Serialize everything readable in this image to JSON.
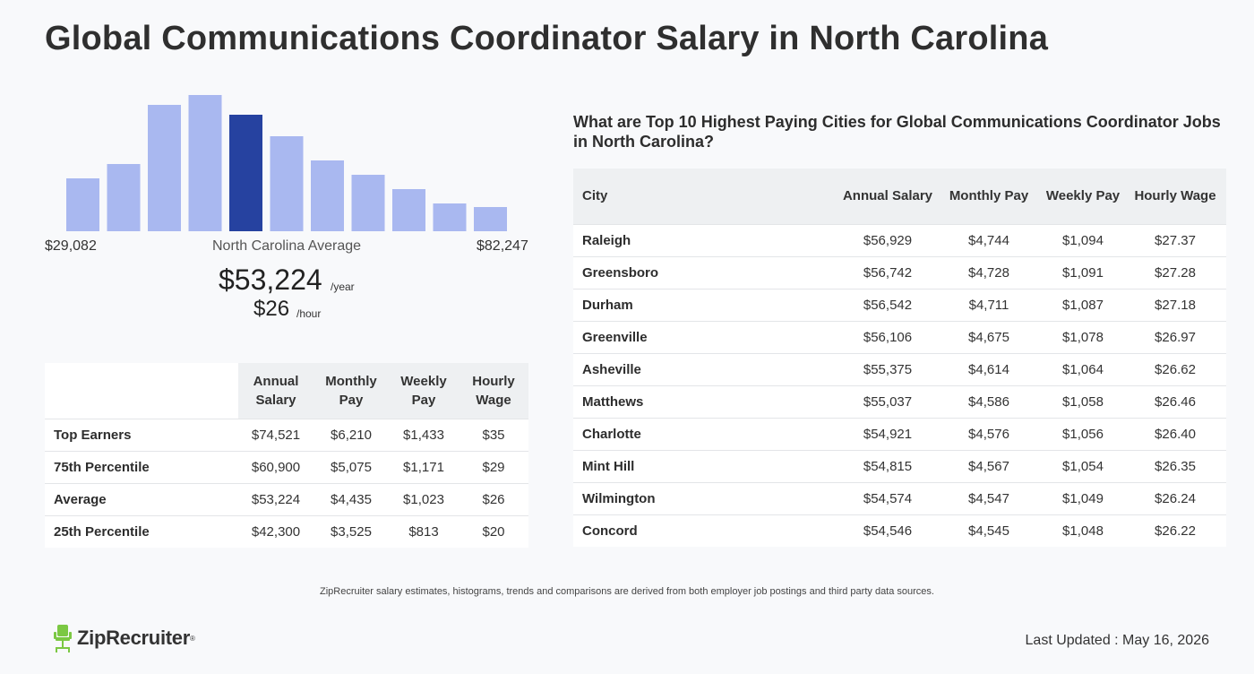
{
  "page": {
    "title": "Global Communications Coordinator Salary in North Carolina"
  },
  "histogram": {
    "range_min": "$29,082",
    "range_max": "$82,247",
    "average_label": "North Carolina Average",
    "annual_salary": "$53,224",
    "annual_unit": "/year",
    "hourly_wage": "$26",
    "hourly_unit": "/hour",
    "bar_color": "#a9b8f0",
    "highlight_color": "#2642a0"
  },
  "chart_data": {
    "type": "bar",
    "relative_heights": [
      59,
      75,
      141,
      152,
      130,
      106,
      79,
      63,
      47,
      31,
      27
    ],
    "highlight_index": 4,
    "x_range": [
      "$29,082",
      "$82,247"
    ]
  },
  "percentile_table": {
    "headers": [
      "",
      "Annual Salary",
      "Monthly Pay",
      "Weekly Pay",
      "Hourly Wage"
    ],
    "rows": [
      [
        "Top Earners",
        "$74,521",
        "$6,210",
        "$1,433",
        "$35"
      ],
      [
        "75th Percentile",
        "$60,900",
        "$5,075",
        "$1,171",
        "$29"
      ],
      [
        "Average",
        "$53,224",
        "$4,435",
        "$1,023",
        "$26"
      ],
      [
        "25th Percentile",
        "$42,300",
        "$3,525",
        "$813",
        "$20"
      ]
    ]
  },
  "cities": {
    "title": "What are Top 10 Highest Paying Cities for Global Communications Coordinator Jobs in North Carolina?",
    "headers": [
      "City",
      "Annual Salary",
      "Monthly Pay",
      "Weekly Pay",
      "Hourly Wage"
    ],
    "rows": [
      [
        "Raleigh",
        "$56,929",
        "$4,744",
        "$1,094",
        "$27.37"
      ],
      [
        "Greensboro",
        "$56,742",
        "$4,728",
        "$1,091",
        "$27.28"
      ],
      [
        "Durham",
        "$56,542",
        "$4,711",
        "$1,087",
        "$27.18"
      ],
      [
        "Greenville",
        "$56,106",
        "$4,675",
        "$1,078",
        "$26.97"
      ],
      [
        "Asheville",
        "$55,375",
        "$4,614",
        "$1,064",
        "$26.62"
      ],
      [
        "Matthews",
        "$55,037",
        "$4,586",
        "$1,058",
        "$26.46"
      ],
      [
        "Charlotte",
        "$54,921",
        "$4,576",
        "$1,056",
        "$26.40"
      ],
      [
        "Mint Hill",
        "$54,815",
        "$4,567",
        "$1,054",
        "$26.35"
      ],
      [
        "Wilmington",
        "$54,574",
        "$4,547",
        "$1,049",
        "$26.24"
      ],
      [
        "Concord",
        "$54,546",
        "$4,545",
        "$1,048",
        "$26.22"
      ]
    ]
  },
  "footer": {
    "disclaimer": "ZipRecruiter salary estimates, histograms, trends and comparisons are derived from both employer job postings and third party data sources.",
    "logo_text": "ZipRecruiter",
    "logo_tm": "®",
    "last_updated": "Last Updated : May 16, 2026",
    "logo_icon": "chair-icon",
    "logo_color": "#7bc843"
  }
}
